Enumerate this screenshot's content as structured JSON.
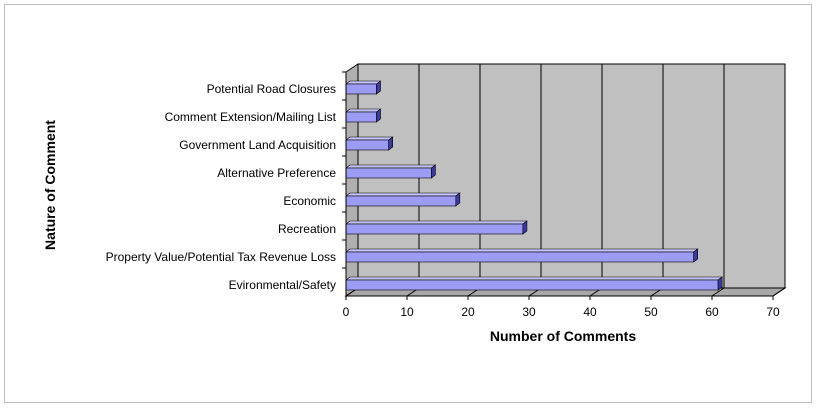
{
  "chart_data": {
    "type": "bar",
    "orientation": "horizontal",
    "title": "",
    "xlabel": "Number of Comments",
    "ylabel": "Nature of Comment",
    "categories": [
      "Potential Road Closures",
      "Comment Extension/Mailing List",
      "Government Land Acquisition",
      "Alternative Preference",
      "Economic",
      "Recreation",
      "Property Value/Potential Tax Revenue Loss",
      "Evironmental/Safety"
    ],
    "values": [
      5,
      5,
      7,
      14,
      18,
      29,
      57,
      61
    ],
    "xlim": [
      0,
      70
    ],
    "xticks": [
      "0",
      "10",
      "20",
      "30",
      "40",
      "50",
      "60",
      "70"
    ],
    "grid": true,
    "legend": "none",
    "colors": {
      "bar_front": "#9c9cf4",
      "bar_top": "#c4c4ff",
      "bar_side": "#3a3aa0",
      "wall": "#c0c0c0",
      "floor": "#a8a8a8",
      "grid": "#000000"
    }
  }
}
